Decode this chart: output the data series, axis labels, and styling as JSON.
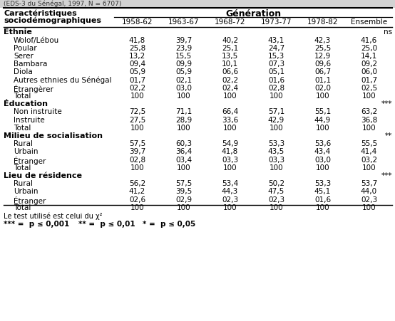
{
  "title_top": "(EDS-3 du Sénégal, 1997, N = 6707)",
  "header_left1": "Caractéristiques",
  "header_left2": "sociodémographiques",
  "header_gen": "Génération",
  "columns": [
    "1958-62",
    "1963-67",
    "1968-72",
    "1973-77",
    "1978-82",
    "Ensemble"
  ],
  "sections": [
    {
      "name": "Ethnie",
      "sig": "ns",
      "rows": [
        {
          "label": "Wolof/Lébou",
          "values": [
            "41,8",
            "39,7",
            "40,2",
            "43,1",
            "42,3",
            "41,6"
          ]
        },
        {
          "label": "Poular",
          "values": [
            "25,8",
            "23,9",
            "25,1",
            "24,7",
            "25,5",
            "25,0"
          ]
        },
        {
          "label": "Serer",
          "values": [
            "13,2",
            "15,5",
            "13,5",
            "15,3",
            "12,9",
            "14,1"
          ]
        },
        {
          "label": "Bambara",
          "values": [
            "09,4",
            "09,9",
            "10,1",
            "07,3",
            "09,6",
            "09,2"
          ]
        },
        {
          "label": "Diola",
          "values": [
            "05,9",
            "05,9",
            "06,6",
            "05,1",
            "06,7",
            "06,0"
          ]
        },
        {
          "label": "Autres ethnies du Sénégal",
          "values": [
            "01,7",
            "02,1",
            "02,2",
            "01,6",
            "01,1",
            "01,7"
          ]
        },
        {
          "label": "Étrangèrer",
          "values": [
            "02,2",
            "03,0",
            "02,4",
            "02,8",
            "02,0",
            "02,5"
          ]
        },
        {
          "label": "Total",
          "values": [
            "100",
            "100",
            "100",
            "100",
            "100",
            "100"
          ]
        }
      ]
    },
    {
      "name": "Éducation",
      "sig": "***",
      "rows": [
        {
          "label": "Non instruite",
          "values": [
            "72,5",
            "71,1",
            "66,4",
            "57,1",
            "55,1",
            "63,2"
          ]
        },
        {
          "label": "Instruite",
          "values": [
            "27,5",
            "28,9",
            "33,6",
            "42,9",
            "44,9",
            "36,8"
          ]
        },
        {
          "label": "Total",
          "values": [
            "100",
            "100",
            "100",
            "100",
            "100",
            "100"
          ]
        }
      ]
    },
    {
      "name": "Milieu de socialisation",
      "sig": "**",
      "rows": [
        {
          "label": "Rural",
          "values": [
            "57,5",
            "60,3",
            "54,9",
            "53,3",
            "53,6",
            "55,5"
          ]
        },
        {
          "label": "Urbain",
          "values": [
            "39,7",
            "36,4",
            "41,8",
            "43,5",
            "43,4",
            "41,4"
          ]
        },
        {
          "label": "Étranger",
          "values": [
            "02,8",
            "03,4",
            "03,3",
            "03,3",
            "03,0",
            "03,2"
          ]
        },
        {
          "label": "Total",
          "values": [
            "100",
            "100",
            "100",
            "100",
            "100",
            "100"
          ]
        }
      ]
    },
    {
      "name": "Lieu de résidence",
      "sig": "***",
      "rows": [
        {
          "label": "Rural",
          "values": [
            "56,2",
            "57,5",
            "53,4",
            "50,2",
            "53,3",
            "53,7"
          ]
        },
        {
          "label": "Urbain",
          "values": [
            "41,2",
            "39,5",
            "44,3",
            "47,5",
            "45,1",
            "44,0"
          ]
        },
        {
          "label": "Étranger",
          "values": [
            "02,6",
            "02,9",
            "02,3",
            "02,3",
            "01,6",
            "02,3"
          ]
        },
        {
          "label": "Total",
          "values": [
            "100",
            "100",
            "100",
            "100",
            "100",
            "100"
          ]
        }
      ]
    }
  ],
  "footnote1": "Le test utilisé est celui du χ²",
  "footnote2": "*** =  p ≤ 0,001",
  "footnote3": "** =  p ≤ 0,01",
  "footnote4": "* =  p ≤ 0,05",
  "bg_color": "#ffffff",
  "text_color": "#000000",
  "fig_w": 5.54,
  "fig_h": 4.51,
  "dpi": 100
}
